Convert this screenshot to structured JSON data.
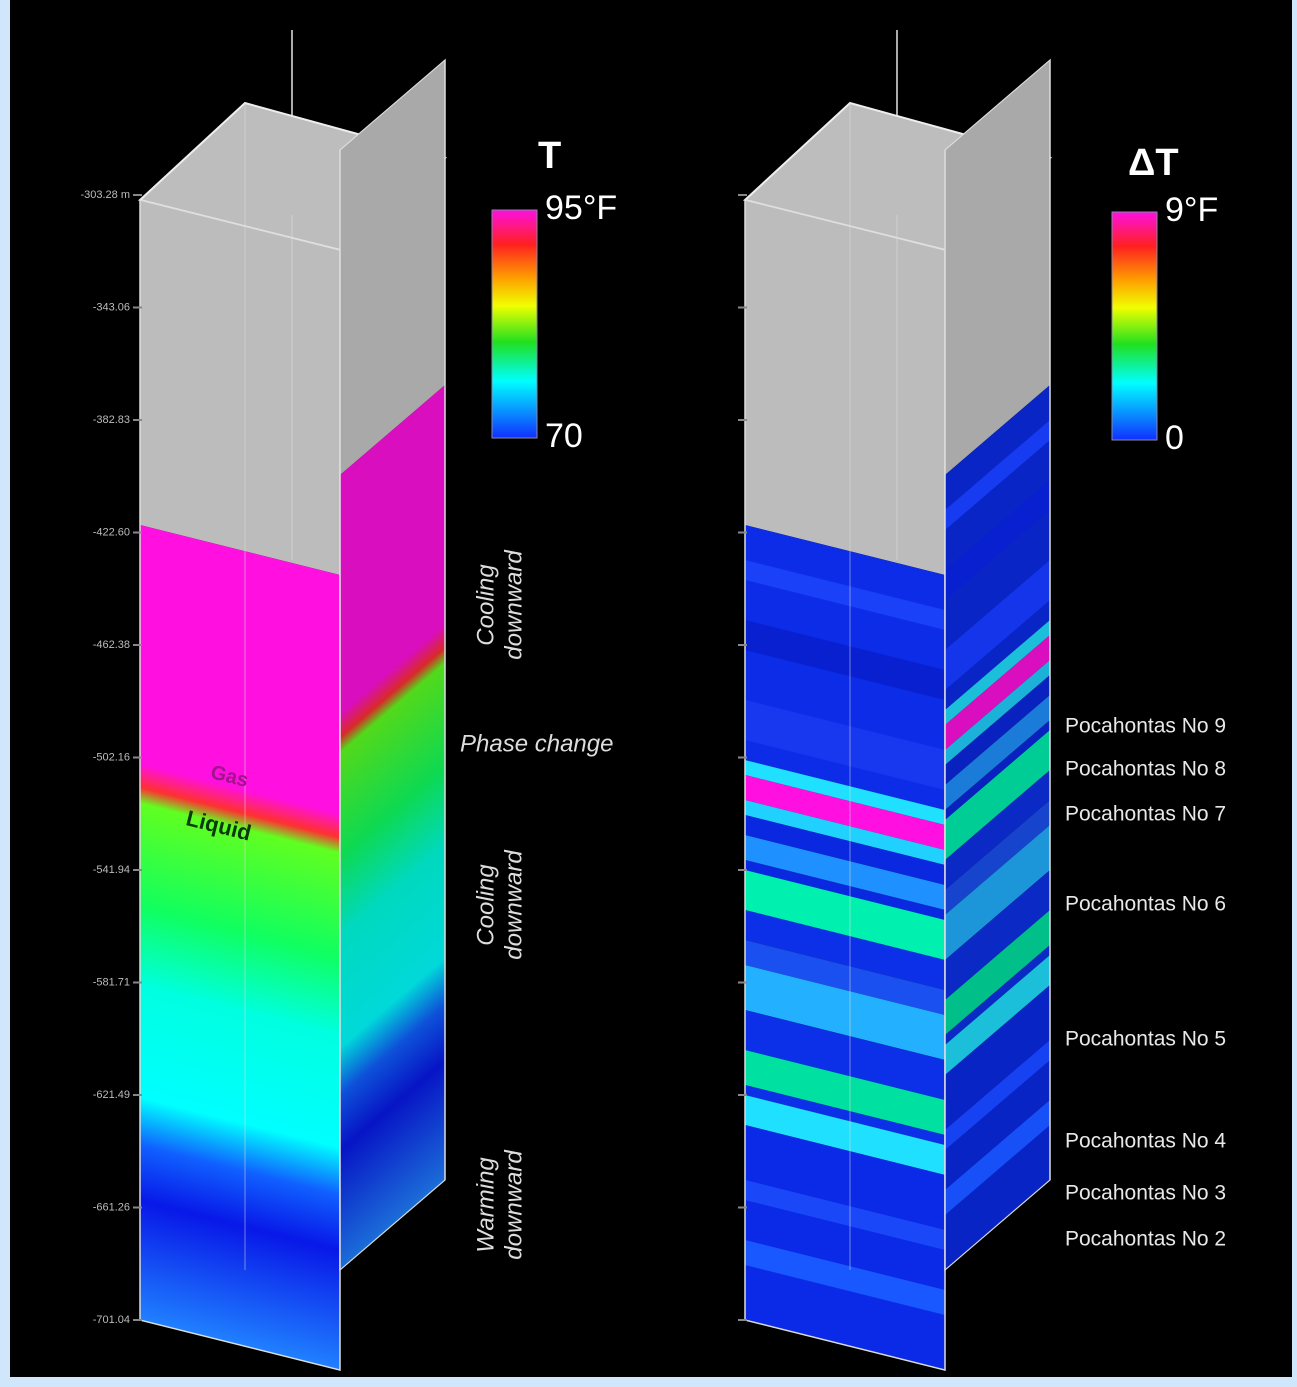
{
  "left_panel": {
    "depth_labels": [
      "-303.28 m",
      "-343.06",
      "-382.83",
      "-422.60",
      "-462.38",
      "-502.16",
      "-541.94",
      "-581.71",
      "-621.49",
      "-661.26",
      "-701.04"
    ],
    "legend": {
      "title": "T",
      "max": "95°F",
      "min": "70"
    },
    "phases": {
      "gas": "Gas",
      "liquid": "Liquid"
    },
    "annotations": [
      {
        "lines": [
          "Cooling",
          "downward"
        ]
      },
      {
        "text": "Phase change"
      },
      {
        "lines": [
          "Cooling",
          "downward"
        ]
      },
      {
        "lines": [
          "Warming",
          "downward"
        ]
      }
    ]
  },
  "right_panel": {
    "legend": {
      "title": "ΔT",
      "max": "9°F",
      "min": "0"
    },
    "seams": [
      "Pocahontas No 9",
      "Pocahontas No 8",
      "Pocahontas No 7",
      "Pocahontas No 6",
      "Pocahontas No 5",
      "Pocahontas No 4",
      "Pocahontas No 3",
      "Pocahontas No 2"
    ]
  }
}
